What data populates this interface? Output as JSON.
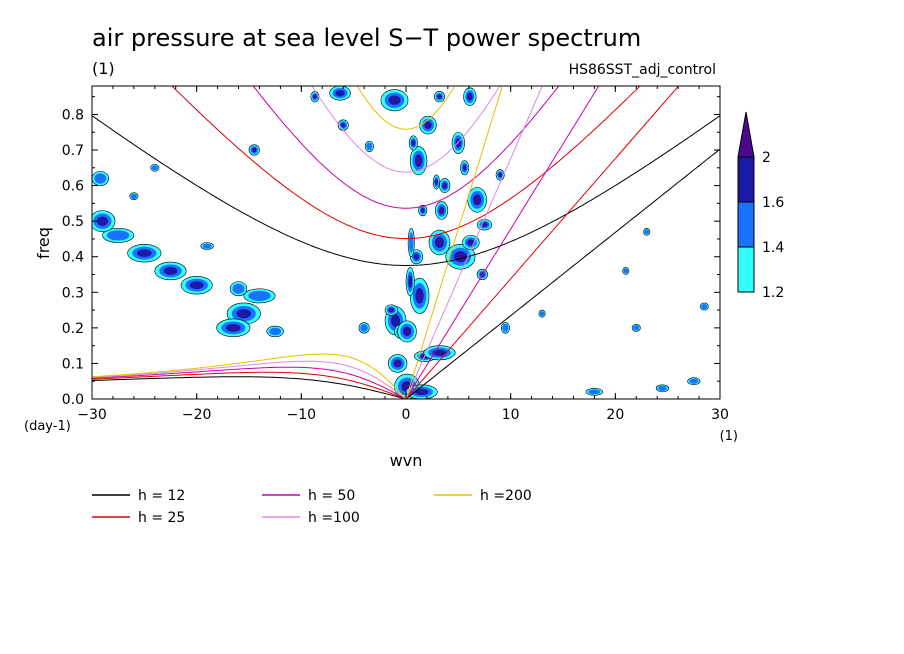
{
  "chart_data": {
    "type": "heatmap",
    "title": "air pressure at sea level S−T power spectrum",
    "subtitle_left": "(1)",
    "subtitle_right": "HS86SST_adj_control",
    "xlabel": "wvn",
    "ylabel": "freq",
    "x_unit": "(1)",
    "y_unit": "(day-1)",
    "xlim": [
      -30,
      30
    ],
    "ylim": [
      0,
      0.88
    ],
    "x_ticks": [
      -30,
      -20,
      -10,
      0,
      10,
      20,
      30
    ],
    "y_ticks": [
      0.0,
      0.1,
      0.2,
      0.3,
      0.4,
      0.5,
      0.6,
      0.7,
      0.8
    ],
    "x_tick_labels": [
      "−30",
      "−20",
      "−10",
      "0",
      "10",
      "20",
      "30"
    ],
    "y_tick_labels": [
      "0.0",
      "0.1",
      "0.2",
      "0.3",
      "0.4",
      "0.5",
      "0.6",
      "0.7",
      "0.8"
    ],
    "colorbar": {
      "levels": [
        1.2,
        1.4,
        1.6,
        2
      ],
      "labels": [
        "1.2",
        "1.4",
        "1.6",
        "2"
      ],
      "colors": [
        "#33ffff",
        "#1a73ff",
        "#1a1aa6",
        "#4b0a8c"
      ]
    },
    "dispersion_curves": [
      {
        "label": "h = 12",
        "h": 12,
        "color": "#000000"
      },
      {
        "label": "h = 25",
        "h": 25,
        "color": "#e00000"
      },
      {
        "label": "h = 50",
        "h": 50,
        "color": "#cc00aa"
      },
      {
        "label": "h =100",
        "h": 100,
        "color": "#dd88dd"
      },
      {
        "label": "h =200",
        "h": 200,
        "color": "#e6c000"
      }
    ],
    "blobs": [
      {
        "x": 0.1,
        "y": 0.035,
        "rx": 1.2,
        "ry": 0.035,
        "level": 3
      },
      {
        "x": -0.8,
        "y": 0.1,
        "rx": 0.9,
        "ry": 0.025,
        "level": 3
      },
      {
        "x": 1.5,
        "y": 0.02,
        "rx": 1.5,
        "ry": 0.02,
        "level": 3
      },
      {
        "x": -1.0,
        "y": 0.22,
        "rx": 1.0,
        "ry": 0.04,
        "level": 2
      },
      {
        "x": -0.5,
        "y": 0.19,
        "rx": 0.6,
        "ry": 0.02,
        "level": 1
      },
      {
        "x": -1.4,
        "y": 0.25,
        "rx": 0.6,
        "ry": 0.015,
        "level": 3
      },
      {
        "x": 0.1,
        "y": 0.19,
        "rx": 0.9,
        "ry": 0.03,
        "level": 3
      },
      {
        "x": 1.8,
        "y": 0.12,
        "rx": 1.0,
        "ry": 0.015,
        "level": 3
      },
      {
        "x": 3.2,
        "y": 0.13,
        "rx": 1.5,
        "ry": 0.02,
        "level": 3
      },
      {
        "x": 1.3,
        "y": 0.29,
        "rx": 0.9,
        "ry": 0.05,
        "level": 3
      },
      {
        "x": 0.4,
        "y": 0.33,
        "rx": 0.4,
        "ry": 0.04,
        "level": 2
      },
      {
        "x": 1.0,
        "y": 0.4,
        "rx": 0.6,
        "ry": 0.02,
        "level": 3
      },
      {
        "x": 0.5,
        "y": 0.44,
        "rx": 0.3,
        "ry": 0.04,
        "level": 1
      },
      {
        "x": 1.6,
        "y": 0.53,
        "rx": 0.4,
        "ry": 0.015,
        "level": 2
      },
      {
        "x": 1.2,
        "y": 0.67,
        "rx": 0.8,
        "ry": 0.04,
        "level": 3
      },
      {
        "x": 2.1,
        "y": 0.77,
        "rx": 0.8,
        "ry": 0.025,
        "level": 3
      },
      {
        "x": 0.7,
        "y": 0.72,
        "rx": 0.4,
        "ry": 0.02,
        "level": 2
      },
      {
        "x": 3.2,
        "y": 0.44,
        "rx": 1.0,
        "ry": 0.035,
        "level": 3
      },
      {
        "x": 3.4,
        "y": 0.53,
        "rx": 0.6,
        "ry": 0.025,
        "level": 3
      },
      {
        "x": 3.7,
        "y": 0.6,
        "rx": 0.5,
        "ry": 0.02,
        "level": 3
      },
      {
        "x": 2.9,
        "y": 0.61,
        "rx": 0.3,
        "ry": 0.02,
        "level": 2
      },
      {
        "x": 5.0,
        "y": 0.72,
        "rx": 0.6,
        "ry": 0.03,
        "level": 3
      },
      {
        "x": 3.2,
        "y": 0.85,
        "rx": 0.5,
        "ry": 0.015,
        "level": 2
      },
      {
        "x": 5.2,
        "y": 0.4,
        "rx": 1.4,
        "ry": 0.035,
        "level": 3
      },
      {
        "x": 6.8,
        "y": 0.56,
        "rx": 0.9,
        "ry": 0.035,
        "level": 3
      },
      {
        "x": 6.2,
        "y": 0.44,
        "rx": 0.8,
        "ry": 0.02,
        "level": 2
      },
      {
        "x": 5.6,
        "y": 0.65,
        "rx": 0.4,
        "ry": 0.02,
        "level": 2
      },
      {
        "x": 7.5,
        "y": 0.49,
        "rx": 0.7,
        "ry": 0.015,
        "level": 2
      },
      {
        "x": 6.1,
        "y": 0.85,
        "rx": 0.6,
        "ry": 0.025,
        "level": 3
      },
      {
        "x": 9.0,
        "y": 0.63,
        "rx": 0.4,
        "ry": 0.015,
        "level": 2
      },
      {
        "x": 7.3,
        "y": 0.35,
        "rx": 0.5,
        "ry": 0.015,
        "level": 2
      },
      {
        "x": -1.1,
        "y": 0.84,
        "rx": 1.3,
        "ry": 0.03,
        "level": 3
      },
      {
        "x": -6.3,
        "y": 0.86,
        "rx": 1.0,
        "ry": 0.02,
        "level": 2
      },
      {
        "x": -8.7,
        "y": 0.85,
        "rx": 0.4,
        "ry": 0.015,
        "level": 2
      },
      {
        "x": -14.5,
        "y": 0.7,
        "rx": 0.5,
        "ry": 0.015,
        "level": 2
      },
      {
        "x": -6.0,
        "y": 0.77,
        "rx": 0.5,
        "ry": 0.015,
        "level": 2
      },
      {
        "x": -3.5,
        "y": 0.71,
        "rx": 0.4,
        "ry": 0.015,
        "level": 1
      },
      {
        "x": -15.5,
        "y": 0.24,
        "rx": 1.6,
        "ry": 0.03,
        "level": 2
      },
      {
        "x": -16.5,
        "y": 0.2,
        "rx": 1.6,
        "ry": 0.025,
        "level": 3
      },
      {
        "x": -14.0,
        "y": 0.29,
        "rx": 1.5,
        "ry": 0.02,
        "level": 1
      },
      {
        "x": -16.0,
        "y": 0.31,
        "rx": 0.8,
        "ry": 0.02,
        "level": 1
      },
      {
        "x": -12.5,
        "y": 0.19,
        "rx": 0.8,
        "ry": 0.015,
        "level": 1
      },
      {
        "x": -20.0,
        "y": 0.32,
        "rx": 1.5,
        "ry": 0.025,
        "level": 2
      },
      {
        "x": -22.5,
        "y": 0.36,
        "rx": 1.5,
        "ry": 0.025,
        "level": 2
      },
      {
        "x": -25.0,
        "y": 0.41,
        "rx": 1.6,
        "ry": 0.025,
        "level": 2
      },
      {
        "x": -27.5,
        "y": 0.46,
        "rx": 1.5,
        "ry": 0.02,
        "level": 1
      },
      {
        "x": -29.0,
        "y": 0.5,
        "rx": 1.2,
        "ry": 0.03,
        "level": 2
      },
      {
        "x": -29.2,
        "y": 0.62,
        "rx": 0.8,
        "ry": 0.02,
        "level": 1
      },
      {
        "x": -24.0,
        "y": 0.65,
        "rx": 0.4,
        "ry": 0.01,
        "level": 1
      },
      {
        "x": -26.0,
        "y": 0.57,
        "rx": 0.4,
        "ry": 0.01,
        "level": 1
      },
      {
        "x": -19.0,
        "y": 0.43,
        "rx": 0.6,
        "ry": 0.01,
        "level": 1
      },
      {
        "x": -4.0,
        "y": 0.2,
        "rx": 0.5,
        "ry": 0.015,
        "level": 1
      },
      {
        "x": 9.5,
        "y": 0.2,
        "rx": 0.4,
        "ry": 0.015,
        "level": 1
      },
      {
        "x": 22.0,
        "y": 0.2,
        "rx": 0.4,
        "ry": 0.01,
        "level": 1
      },
      {
        "x": 27.5,
        "y": 0.05,
        "rx": 0.6,
        "ry": 0.01,
        "level": 1
      },
      {
        "x": 18.0,
        "y": 0.02,
        "rx": 0.8,
        "ry": 0.01,
        "level": 1
      },
      {
        "x": 24.5,
        "y": 0.03,
        "rx": 0.6,
        "ry": 0.01,
        "level": 1
      },
      {
        "x": 21.0,
        "y": 0.36,
        "rx": 0.3,
        "ry": 0.01,
        "level": 1
      },
      {
        "x": 28.5,
        "y": 0.26,
        "rx": 0.4,
        "ry": 0.01,
        "level": 1
      },
      {
        "x": 23.0,
        "y": 0.47,
        "rx": 0.3,
        "ry": 0.01,
        "level": 1
      },
      {
        "x": 13.0,
        "y": 0.24,
        "rx": 0.3,
        "ry": 0.01,
        "level": 1
      }
    ]
  }
}
